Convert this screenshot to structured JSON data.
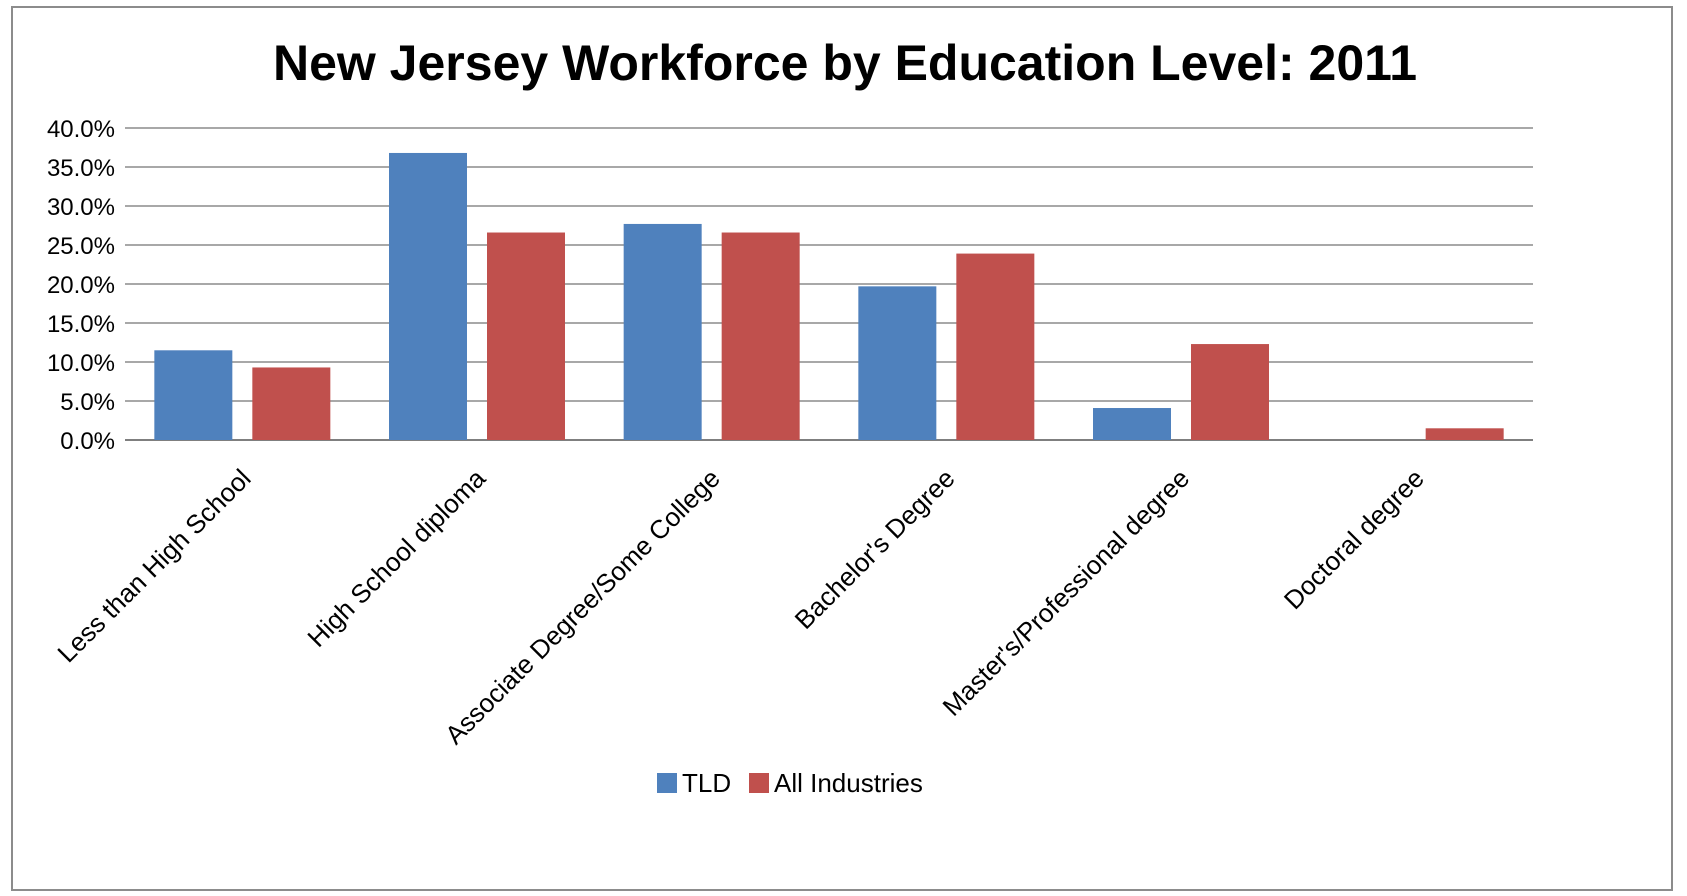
{
  "chart_data": {
    "type": "bar",
    "title": "New Jersey Workforce by Education Level: 2011",
    "xlabel": "",
    "ylabel": "",
    "categories": [
      "Less than High School",
      "High School diploma",
      "Associate Degree/Some College",
      "Bachelor's Degree",
      "Master's/Professional degree",
      "Doctoral degree"
    ],
    "series": [
      {
        "name": "TLD",
        "color": "#4f81bd",
        "values": [
          11.5,
          36.8,
          27.7,
          19.7,
          4.1,
          0.0
        ]
      },
      {
        "name": "All Industries",
        "color": "#c0504d",
        "values": [
          9.3,
          26.6,
          26.6,
          23.9,
          12.3,
          1.5
        ]
      }
    ],
    "ylim": [
      0,
      40
    ],
    "yticks": [
      "0.0%",
      "5.0%",
      "10.0%",
      "15.0%",
      "20.0%",
      "25.0%",
      "30.0%",
      "35.0%",
      "40.0%"
    ],
    "ytick_values": [
      0,
      5,
      10,
      15,
      20,
      25,
      30,
      35,
      40
    ],
    "grid": true,
    "legend": "bottom"
  }
}
